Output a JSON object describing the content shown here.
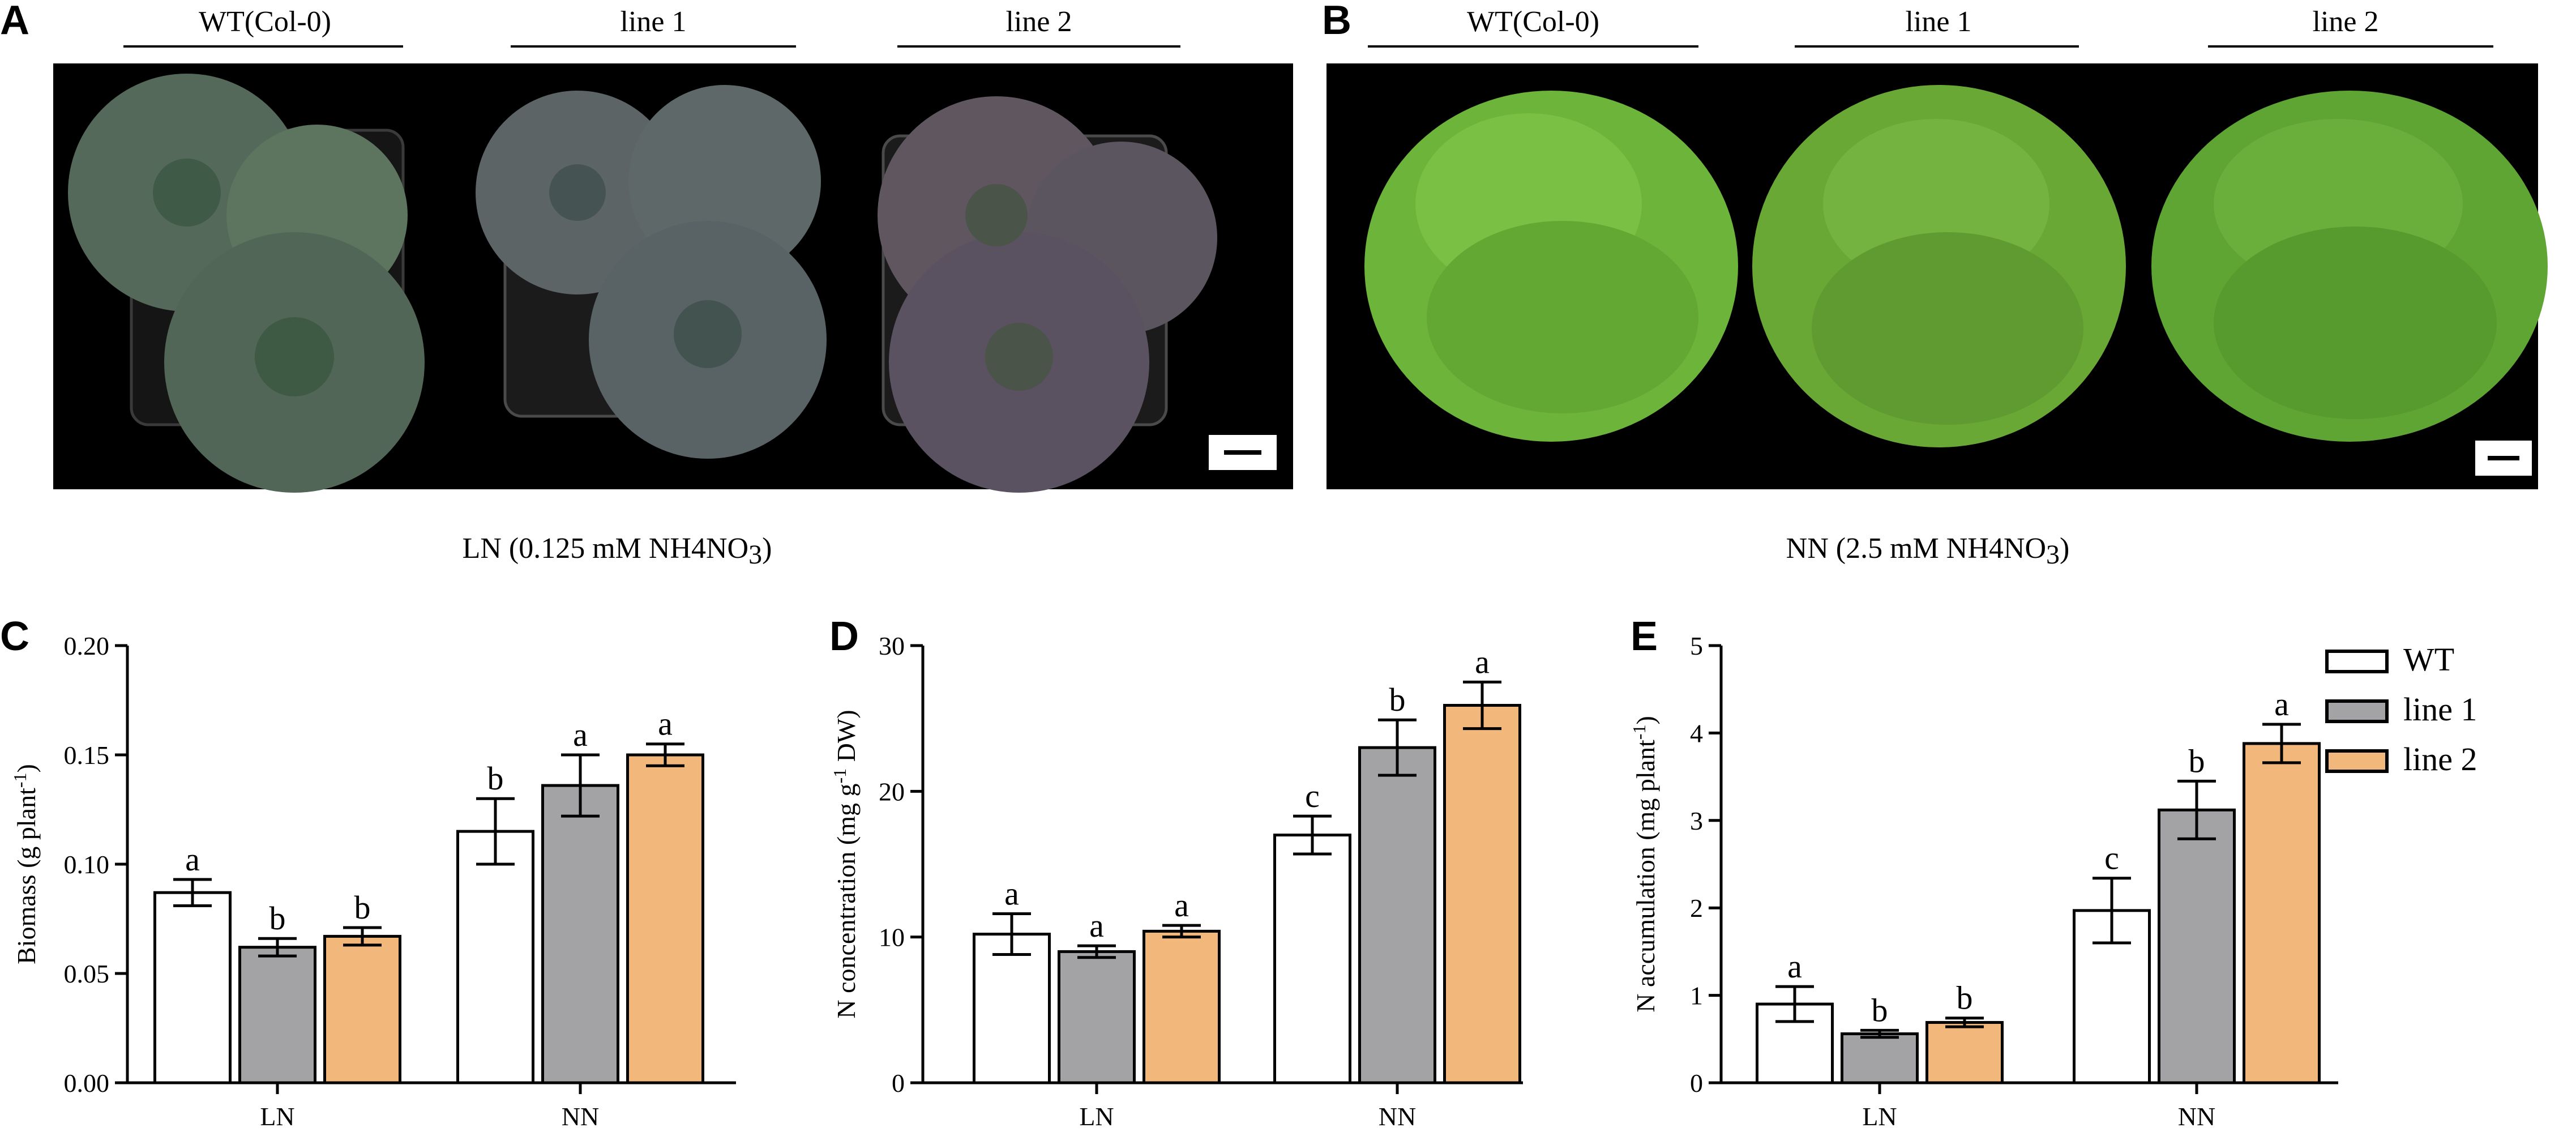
{
  "panels": {
    "A": {
      "letter": "A",
      "columns": [
        "WT(Col-0)",
        "line 1",
        "line 2"
      ],
      "caption_pre": "LN (0.125 mM NH",
      "caption_sub1": "4",
      "caption_mid": "NO",
      "caption_sub2": "3",
      "caption_post": ")",
      "leaf_color": "#5a6e5c",
      "pot_color": "#1a1a1a"
    },
    "B": {
      "letter": "B",
      "columns": [
        "WT(Col-0)",
        "line 1",
        "line 2"
      ],
      "caption_pre": "NN (2.5 mM NH",
      "caption_sub1": "4",
      "caption_mid": "NO",
      "caption_sub2": "3",
      "caption_post": ")",
      "leaf_color": "#6fb33a"
    }
  },
  "legend": [
    {
      "name": "WT",
      "color": "#ffffff"
    },
    {
      "name": "line 1",
      "color": "#a3a3a6"
    },
    {
      "name": "line 2",
      "color": "#f2b77a"
    }
  ],
  "chart_data": [
    {
      "type": "bar",
      "letter": "C",
      "categories": [
        "LN",
        "NN"
      ],
      "ylabel": "Biomass (g plant",
      "ylabel_sup": "-1",
      "ylabel_end": ")",
      "ylim": [
        0,
        0.2
      ],
      "yticks": [
        0.0,
        0.05,
        0.1,
        0.15,
        0.2
      ],
      "ytick_labels": [
        "0.00",
        "0.05",
        "0.10",
        "0.15",
        "0.20"
      ],
      "series": [
        {
          "name": "WT",
          "values": [
            0.087,
            0.115
          ],
          "errors": [
            0.006,
            0.015
          ],
          "letters": [
            "a",
            "b"
          ]
        },
        {
          "name": "line 1",
          "values": [
            0.062,
            0.136
          ],
          "errors": [
            0.004,
            0.014
          ],
          "letters": [
            "b",
            "a"
          ]
        },
        {
          "name": "line 2",
          "values": [
            0.067,
            0.15
          ],
          "errors": [
            0.004,
            0.005
          ],
          "letters": [
            "b",
            "a"
          ]
        }
      ]
    },
    {
      "type": "bar",
      "letter": "D",
      "categories": [
        "LN",
        "NN"
      ],
      "ylabel": "N concentration (mg g",
      "ylabel_sup": "-1",
      "ylabel_end": " DW)",
      "ylim": [
        0,
        30
      ],
      "yticks": [
        0,
        10,
        20,
        30
      ],
      "ytick_labels": [
        "0",
        "10",
        "20",
        "30"
      ],
      "series": [
        {
          "name": "WT",
          "values": [
            10.2,
            17.0
          ],
          "errors": [
            1.4,
            1.3
          ],
          "letters": [
            "a",
            "c"
          ]
        },
        {
          "name": "line 1",
          "values": [
            9.0,
            23.0
          ],
          "errors": [
            0.4,
            1.9
          ],
          "letters": [
            "a",
            "b"
          ]
        },
        {
          "name": "line 2",
          "values": [
            10.4,
            25.9
          ],
          "errors": [
            0.4,
            1.6
          ],
          "letters": [
            "a",
            "a"
          ]
        }
      ]
    },
    {
      "type": "bar",
      "letter": "E",
      "categories": [
        "LN",
        "NN"
      ],
      "ylabel": "N accumulation (mg plant",
      "ylabel_sup": "-1",
      "ylabel_end": ")",
      "ylim": [
        0,
        5
      ],
      "yticks": [
        0,
        1,
        2,
        3,
        4,
        5
      ],
      "ytick_labels": [
        "0",
        "1",
        "2",
        "3",
        "4",
        "5"
      ],
      "series": [
        {
          "name": "WT",
          "values": [
            0.9,
            1.97
          ],
          "errors": [
            0.2,
            0.37
          ],
          "letters": [
            "a",
            "c"
          ]
        },
        {
          "name": "line 1",
          "values": [
            0.56,
            3.12
          ],
          "errors": [
            0.04,
            0.33
          ],
          "letters": [
            "b",
            "b"
          ]
        },
        {
          "name": "line 2",
          "values": [
            0.69,
            3.88
          ],
          "errors": [
            0.05,
            0.22
          ],
          "letters": [
            "b",
            "a"
          ]
        }
      ]
    }
  ]
}
